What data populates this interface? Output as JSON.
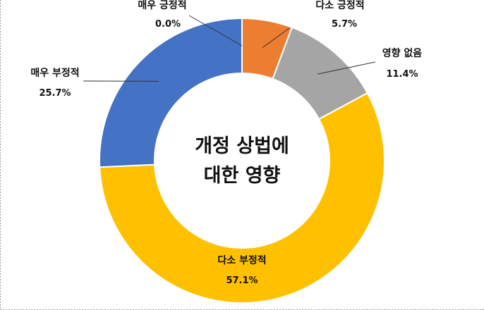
{
  "chart_data": {
    "type": "donut",
    "title": "",
    "center_label": [
      "개정 상법에",
      "대한 영향"
    ],
    "categories": [
      "매우 긍정적",
      "다소 긍정적",
      "영향 없음",
      "다소 부정적",
      "매우 부정적"
    ],
    "values": [
      0.0,
      5.7,
      11.4,
      57.1,
      25.7
    ],
    "value_labels": [
      "0.0%",
      "5.7%",
      "11.4%",
      "57.1%",
      "25.7%"
    ],
    "colors": [
      "#4472c4",
      "#ed7d31",
      "#a5a5a5",
      "#ffc000",
      "#4472c4"
    ],
    "legend": "none"
  }
}
